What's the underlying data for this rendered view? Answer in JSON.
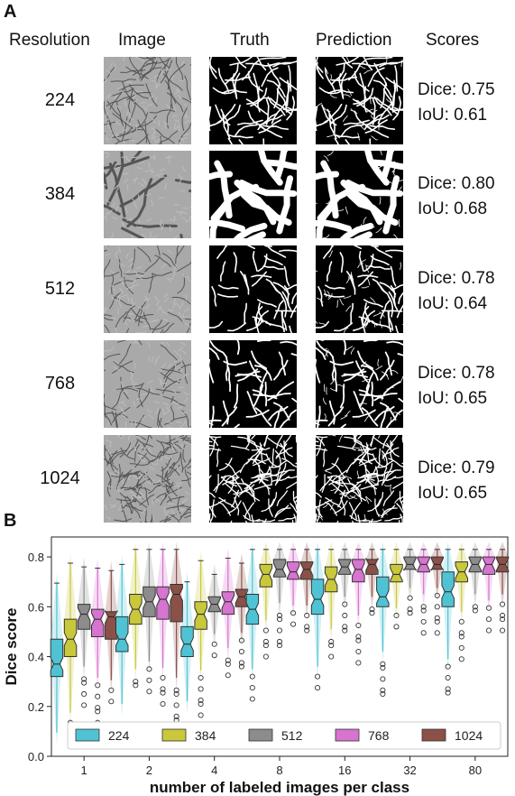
{
  "panel_a": {
    "label": "A",
    "headers": {
      "resolution": "Resolution",
      "image": "Image",
      "truth": "Truth",
      "prediction": "Prediction",
      "scores": "Scores"
    },
    "rows": [
      {
        "resolution": "224",
        "dice": "Dice: 0.75",
        "iou": "IoU: 0.61"
      },
      {
        "resolution": "384",
        "dice": "Dice: 0.80",
        "iou": "IoU: 0.68"
      },
      {
        "resolution": "512",
        "dice": "Dice: 0.78",
        "iou": "IoU: 0.64"
      },
      {
        "resolution": "768",
        "dice": "Dice: 0.78",
        "iou": "IoU: 0.65"
      },
      {
        "resolution": "1024",
        "dice": "Dice: 0.79",
        "iou": "IoU: 0.65"
      }
    ]
  },
  "panel_b": {
    "label": "B"
  },
  "chart_data": {
    "type": "box",
    "xlabel": "number of labeled images per class",
    "ylabel": "Dice score",
    "ylim": [
      0.0,
      0.88
    ],
    "yticks": [
      0.0,
      0.2,
      0.4,
      0.6,
      0.8
    ],
    "grid": false,
    "legend_position": "bottom",
    "categories": [
      "1",
      "2",
      "4",
      "8",
      "16",
      "32",
      "80"
    ],
    "series": [
      {
        "name": "224",
        "color": "#4fc3d3",
        "median": [
          0.37,
          0.47,
          0.45,
          0.59,
          0.63,
          0.64,
          0.66
        ],
        "q1": [
          0.32,
          0.42,
          0.4,
          0.53,
          0.57,
          0.6,
          0.6
        ],
        "q3": [
          0.47,
          0.56,
          0.52,
          0.65,
          0.71,
          0.72,
          0.74
        ]
      },
      {
        "name": "384",
        "color": "#c8c83a",
        "median": [
          0.47,
          0.59,
          0.57,
          0.73,
          0.71,
          0.73,
          0.74
        ],
        "q1": [
          0.4,
          0.53,
          0.51,
          0.68,
          0.66,
          0.7,
          0.7
        ],
        "q3": [
          0.55,
          0.65,
          0.62,
          0.77,
          0.76,
          0.77,
          0.78
        ]
      },
      {
        "name": "512",
        "color": "#8c8c8c",
        "median": [
          0.57,
          0.62,
          0.61,
          0.75,
          0.76,
          0.77,
          0.77
        ],
        "q1": [
          0.51,
          0.56,
          0.58,
          0.72,
          0.73,
          0.75,
          0.74
        ],
        "q3": [
          0.61,
          0.68,
          0.64,
          0.79,
          0.79,
          0.8,
          0.8
        ]
      },
      {
        "name": "768",
        "color": "#d674cf",
        "median": [
          0.55,
          0.63,
          0.62,
          0.74,
          0.75,
          0.77,
          0.77
        ],
        "q1": [
          0.48,
          0.55,
          0.57,
          0.71,
          0.7,
          0.74,
          0.73
        ],
        "q3": [
          0.59,
          0.68,
          0.66,
          0.78,
          0.79,
          0.8,
          0.8
        ]
      },
      {
        "name": "1024",
        "color": "#8b5048",
        "median": [
          0.56,
          0.65,
          0.64,
          0.75,
          0.77,
          0.77,
          0.77
        ],
        "q1": [
          0.47,
          0.54,
          0.6,
          0.71,
          0.73,
          0.75,
          0.74
        ],
        "q3": [
          0.58,
          0.69,
          0.67,
          0.78,
          0.79,
          0.8,
          0.8
        ]
      }
    ]
  }
}
